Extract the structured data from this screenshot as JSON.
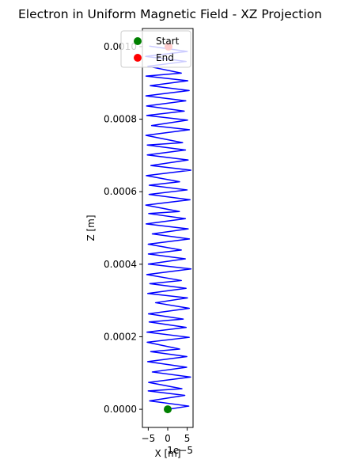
{
  "chart_data": {
    "type": "line",
    "title": "Electron in Uniform Magnetic Field - XZ Projection",
    "xlabel": "X [m]",
    "ylabel": "Z [m]",
    "x_offset_label": "1e−5",
    "xlim": [
      -6.5,
      6.5
    ],
    "ylim": [
      -5e-05,
      0.00105
    ],
    "x_ticks": [
      {
        "value": -5,
        "label": "−5"
      },
      {
        "value": 0,
        "label": "0"
      },
      {
        "value": 5,
        "label": "5"
      }
    ],
    "y_ticks": [
      {
        "value": 0,
        "label": "0.0000"
      },
      {
        "value": 0.0002,
        "label": "0.0002"
      },
      {
        "value": 0.0004,
        "label": "0.0004"
      },
      {
        "value": 0.0006,
        "label": "0.0006"
      },
      {
        "value": 0.0008,
        "label": "0.0008"
      },
      {
        "value": 0.001,
        "label": "0.0010"
      }
    ],
    "grid": false,
    "legend_position": "upper-right",
    "series": [
      {
        "kind": "line",
        "color": "#0000ff",
        "x": [
          0.0,
          5.41,
          -4.66,
          4.38,
          -5.0,
          3.65,
          -4.9,
          5.86,
          -3.96,
          4.86,
          -5.15,
          4.9,
          -4.37,
          3.06,
          -5.26,
          5.52,
          -5.32,
          4.73,
          -4.76,
          3.98,
          -4.94,
          5.54,
          -3.12,
          5.07,
          -5.13,
          4.71,
          -4.61,
          3.5,
          -5.38,
          5.98,
          -4.97,
          4.51,
          -4.97,
          3.49,
          -5.0,
          5.57,
          -3.96,
          5.26,
          -5.54,
          4.54,
          -4.88,
          3.01,
          -5.63,
          5.73,
          -4.79,
          4.98,
          -4.75,
          3.04,
          -5.49,
          5.95,
          -4.33,
          5.24,
          -5.24,
          4.56,
          -5.24,
          3.81,
          -5.6,
          5.56,
          -4.15,
          5.1,
          -5.38,
          4.25,
          -5.42,
          4.63,
          -5.6,
          5.49,
          -4.49,
          5.15,
          -5.57,
          3.49,
          -5.1,
          4.72,
          -5.68,
          5.02,
          -4.75
        ],
        "y": [
          0.0,
          8.8e-06,
          2.32e-05,
          3.85e-05,
          5.08e-05,
          5.67e-05,
          7.41e-05,
          8.89e-05,
          0.0001029,
          0.0001159,
          0.0001315,
          0.0001453,
          0.0001589,
          0.000166,
          0.0001848,
          0.0001984,
          0.0002128,
          0.0002258,
          0.0002408,
          0.0002488,
          0.0002631,
          0.0002785,
          0.0002939,
          0.0003071,
          0.0003195,
          0.0003336,
          0.0003465,
          0.000355,
          0.0003716,
          0.0003871,
          0.0004003,
          0.0004148,
          0.0004283,
          0.0004392,
          0.0004552,
          0.0004696,
          0.0004836,
          0.0004975,
          0.0005113,
          0.0005257,
          0.0005397,
          0.0005453,
          0.0005631,
          0.0005778,
          0.0005926,
          0.0006049,
          0.0006178,
          0.0006274,
          0.0006443,
          0.0006594,
          0.0006722,
          0.0006874,
          0.0007014,
          0.0007151,
          0.0007287,
          0.0007351,
          0.0007554,
          0.0007709,
          0.0007824,
          0.0007974,
          0.0008103,
          0.0008223,
          0.0008364,
          0.0008505,
          0.0008643,
          0.0008789,
          0.0008922,
          0.0009059,
          0.0009189,
          0.0009269,
          0.0009459,
          0.0009593,
          0.0009731,
          0.0009866,
          0.0010015
        ]
      }
    ],
    "markers": [
      {
        "name": "Start",
        "color": "#008000",
        "x": 0.0,
        "y": 0.0
      },
      {
        "name": "End",
        "color": "#ff0000",
        "x": 0.2,
        "y": 0.001
      }
    ]
  }
}
